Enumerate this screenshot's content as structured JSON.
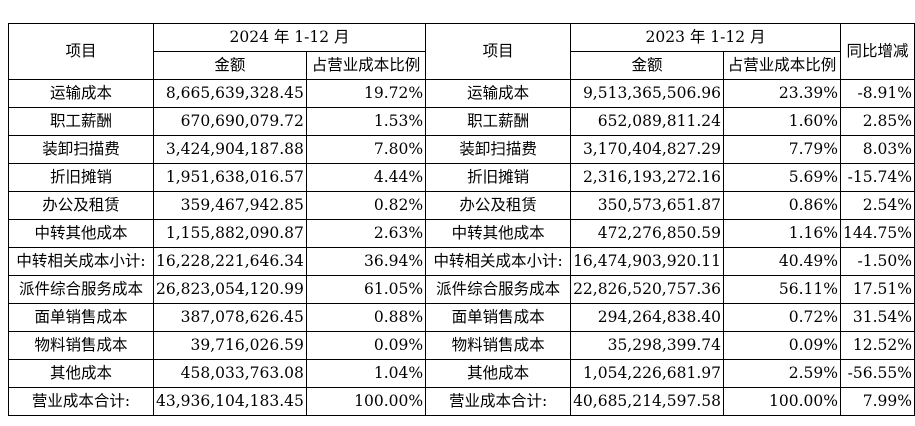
{
  "header": {
    "item": "项目",
    "period_2024": "2024 年 1-12 月",
    "period_2023": "2023 年 1-12 月",
    "amount": "金额",
    "ratio": "占营业成本比例",
    "yoy": "同比增减"
  },
  "rows": [
    {
      "item": "运输成本",
      "amt24": "8,665,639,328.45",
      "pct24": "19.72%",
      "item23": "运输成本",
      "amt23": "9,513,365,506.96",
      "pct23": "23.39%",
      "yoy": "-8.91%"
    },
    {
      "item": "职工薪酬",
      "amt24": "670,690,079.72",
      "pct24": "1.53%",
      "item23": "职工薪酬",
      "amt23": "652,089,811.24",
      "pct23": "1.60%",
      "yoy": "2.85%"
    },
    {
      "item": "装卸扫描费",
      "amt24": "3,424,904,187.88",
      "pct24": "7.80%",
      "item23": "装卸扫描费",
      "amt23": "3,170,404,827.29",
      "pct23": "7.79%",
      "yoy": "8.03%"
    },
    {
      "item": "折旧摊销",
      "amt24": "1,951,638,016.57",
      "pct24": "4.44%",
      "item23": "折旧摊销",
      "amt23": "2,316,193,272.16",
      "pct23": "5.69%",
      "yoy": "-15.74%"
    },
    {
      "item": "办公及租赁",
      "amt24": "359,467,942.85",
      "pct24": "0.82%",
      "item23": "办公及租赁",
      "amt23": "350,573,651.87",
      "pct23": "0.86%",
      "yoy": "2.54%"
    },
    {
      "item": "中转其他成本",
      "amt24": "1,155,882,090.87",
      "pct24": "2.63%",
      "item23": "中转其他成本",
      "amt23": "472,276,850.59",
      "pct23": "1.16%",
      "yoy": "144.75%"
    },
    {
      "item": "中转相关成本小计:",
      "amt24": "16,228,221,646.34",
      "pct24": "36.94%",
      "item23": "中转相关成本小计:",
      "amt23": "16,474,903,920.11",
      "pct23": "40.49%",
      "yoy": "-1.50%"
    },
    {
      "item": "派件综合服务成本",
      "amt24": "26,823,054,120.99",
      "pct24": "61.05%",
      "item23": "派件综合服务成本",
      "amt23": "22,826,520,757.36",
      "pct23": "56.11%",
      "yoy": "17.51%"
    },
    {
      "item": "面单销售成本",
      "amt24": "387,078,626.45",
      "pct24": "0.88%",
      "item23": "面单销售成本",
      "amt23": "294,264,838.40",
      "pct23": "0.72%",
      "yoy": "31.54%"
    },
    {
      "item": "物料销售成本",
      "amt24": "39,716,026.59",
      "pct24": "0.09%",
      "item23": "物料销售成本",
      "amt23": "35,298,399.74",
      "pct23": "0.09%",
      "yoy": "12.52%"
    },
    {
      "item": "其他成本",
      "amt24": "458,033,763.08",
      "pct24": "1.04%",
      "item23": "其他成本",
      "amt23": "1,054,226,681.97",
      "pct23": "2.59%",
      "yoy": "-56.55%"
    },
    {
      "item": "营业成本合计:",
      "amt24": "43,936,104,183.45",
      "pct24": "100.00%",
      "item23": "营业成本合计:",
      "amt23": "40,685,214,597.58",
      "pct23": "100.00%",
      "yoy": "7.99%"
    }
  ]
}
